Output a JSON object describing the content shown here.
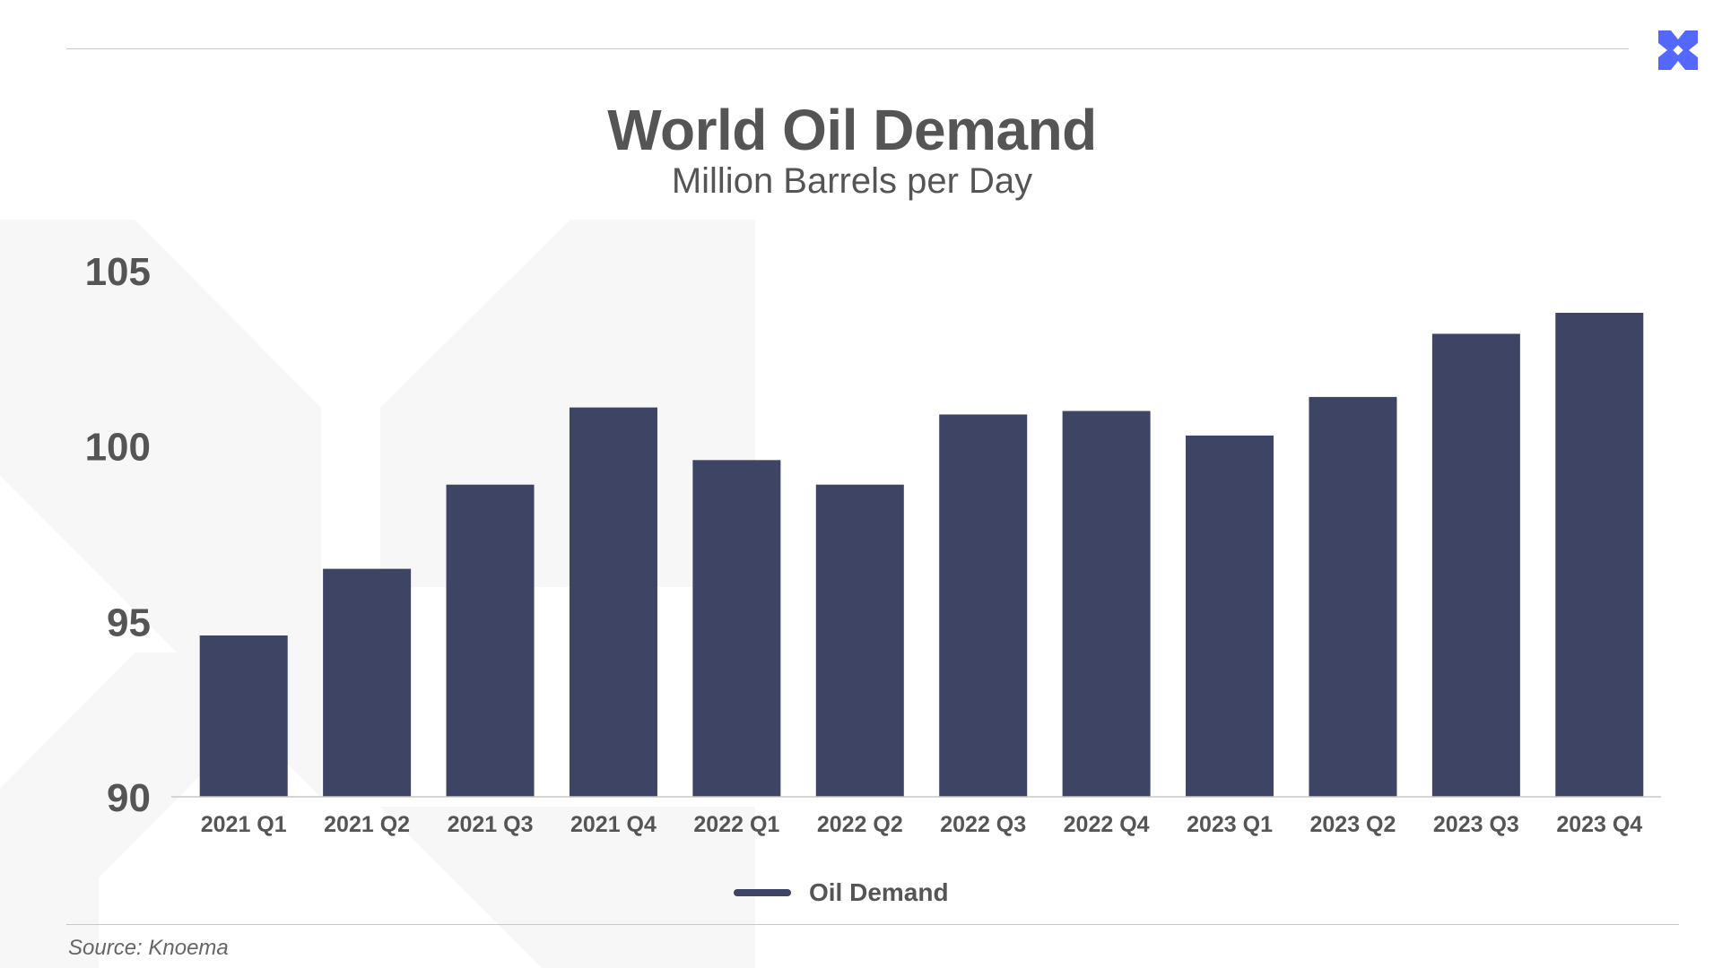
{
  "header": {
    "title": "World Oil Demand",
    "subtitle": "Million Barrels per Day"
  },
  "footer": {
    "source": "Source: Knoema"
  },
  "logo": {
    "icon": "x-cross-logo-icon",
    "color": "#5468ff"
  },
  "colors": {
    "bar": "#3d4464",
    "text": "#555555",
    "background_mark": "#f7f7f7"
  },
  "chart_data": {
    "type": "bar",
    "title": "World Oil Demand",
    "subtitle": "Million Barrels per Day",
    "categories": [
      "2021 Q1",
      "2021 Q2",
      "2021 Q3",
      "2021 Q4",
      "2022 Q1",
      "2022 Q2",
      "2022 Q3",
      "2022 Q4",
      "2023 Q1",
      "2023 Q2",
      "2023 Q3",
      "2023 Q4"
    ],
    "series": [
      {
        "name": "Oil Demand",
        "values": [
          94.6,
          96.5,
          98.9,
          101.1,
          99.6,
          98.9,
          100.9,
          101.0,
          100.3,
          101.4,
          103.2,
          103.8
        ]
      }
    ],
    "ylim": [
      90,
      105
    ],
    "yticks": [
      90,
      95,
      100,
      105
    ],
    "legend": {
      "position": "bottom-center",
      "entries": [
        "Oil Demand"
      ]
    },
    "grid": false,
    "xlabel": "",
    "ylabel": ""
  }
}
